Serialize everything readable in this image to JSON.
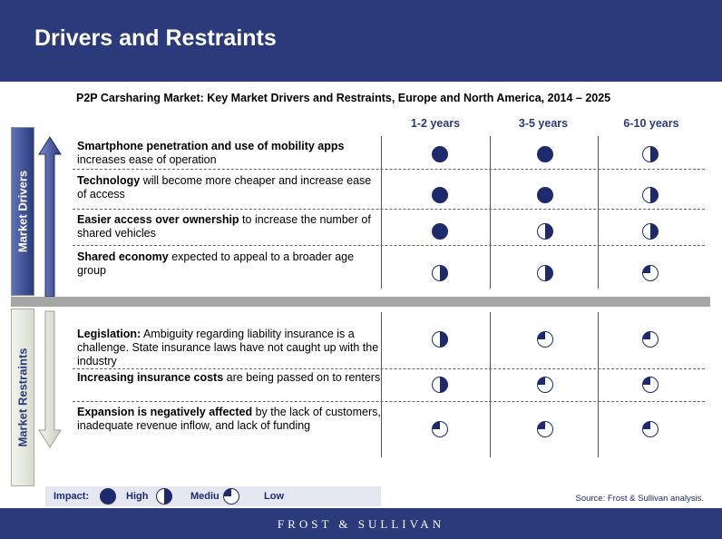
{
  "header": {
    "title": "Drivers and Restraints"
  },
  "subtitle": "P2P Carsharing Market: Key Market Drivers and Restraints, Europe and North America, 2014 – 2025",
  "columns": [
    "1-2 years",
    "3-5 years",
    "6-10 years"
  ],
  "side_labels": {
    "drivers": "Market Drivers",
    "restraints": "Market Restraints"
  },
  "drivers": [
    {
      "bold": "Smartphone penetration and use of mobility apps",
      "rest": " increases ease of operation",
      "impacts": [
        "high",
        "high",
        "medium"
      ]
    },
    {
      "bold": "Technology",
      "rest": " will become more cheaper and increase ease of access",
      "impacts": [
        "high",
        "high",
        "medium"
      ]
    },
    {
      "bold": "Easier access over ownership",
      "rest": " to increase the number of shared vehicles",
      "impacts": [
        "high",
        "medium",
        "medium"
      ]
    },
    {
      "bold": "Shared economy",
      "rest": " expected to appeal to a broader age group",
      "impacts": [
        "medium",
        "medium",
        "low"
      ]
    }
  ],
  "restraints": [
    {
      "bold": "Legislation:",
      "rest": " Ambiguity regarding liability insurance is a challenge. State insurance laws have not caught up with the industry",
      "impacts": [
        "medium",
        "low",
        "low"
      ]
    },
    {
      "bold": "Increasing insurance costs",
      "rest": " are being passed on to renters",
      "impacts": [
        "medium",
        "low",
        "low"
      ]
    },
    {
      "bold": "Expansion is negatively affected",
      "rest": " by the lack of customers, inadequate revenue inflow, and lack of funding",
      "impacts": [
        "low",
        "low",
        "low"
      ]
    }
  ],
  "legend": {
    "title": "Impact:",
    "high": "High",
    "medium": "Mediu",
    "low": "Low"
  },
  "source": "Source: Frost & Sullivan analysis.",
  "footer": {
    "brand": "FROST & SULLIVAN"
  },
  "colors": {
    "navy": "#2b3a7a",
    "ball": "#1e2a6e",
    "separator": "#a6a6a6"
  }
}
